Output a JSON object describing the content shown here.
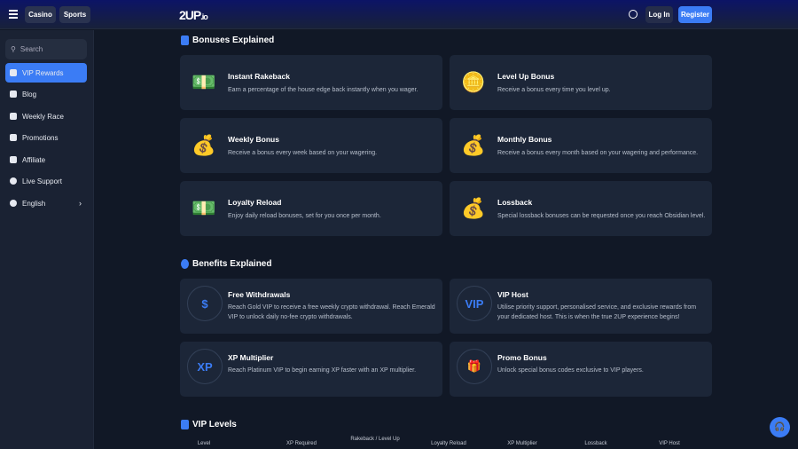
{
  "header": {
    "nav": [
      "Casino",
      "Sports"
    ],
    "logo": "2UP",
    "logo_suffix": ".io",
    "login": "Log In",
    "register": "Register"
  },
  "sidebar": {
    "search": "Search",
    "items": [
      {
        "label": "VIP Rewards",
        "icon": "gift-icon"
      },
      {
        "label": "Blog",
        "icon": "document-icon"
      },
      {
        "label": "Weekly Race",
        "icon": "flag-icon"
      },
      {
        "label": "Promotions",
        "icon": "ticket-icon"
      },
      {
        "label": "Affiliate",
        "icon": "user-plus-icon"
      },
      {
        "label": "Live Support",
        "icon": "support-icon"
      },
      {
        "label": "English",
        "icon": "globe-icon"
      }
    ]
  },
  "bonuses": {
    "title": "Bonuses Explained",
    "items": [
      {
        "title": "Instant Rakeback",
        "desc": "Earn a percentage of the house edge back instantly when you wager.",
        "icon": "💵"
      },
      {
        "title": "Level Up Bonus",
        "desc": "Receive a bonus every time you level up.",
        "icon": "🪙"
      },
      {
        "title": "Weekly Bonus",
        "desc": "Receive a bonus every week based on your wagering.",
        "icon": "💰"
      },
      {
        "title": "Monthly Bonus",
        "desc": "Receive a bonus every month based on your wagering and performance.",
        "icon": "💰"
      },
      {
        "title": "Loyalty Reload",
        "desc": "Enjoy daily reload bonuses, set for you once per month.",
        "icon": "💵"
      },
      {
        "title": "Lossback",
        "desc": "Special lossback bonuses can be requested once you reach Obsidian level.",
        "icon": "💰"
      }
    ]
  },
  "benefits": {
    "title": "Benefits Explained",
    "items": [
      {
        "title": "Free Withdrawals",
        "desc": "Reach Gold VIP to receive a free weekly crypto withdrawal. Reach Emerald VIP to unlock daily no-fee crypto withdrawals.",
        "icon": "$"
      },
      {
        "title": "VIP Host",
        "desc": "Utilise priority support, personalised service, and exclusive rewards from your dedicated host. This is when the true 2UP experience begins!",
        "icon": "VIP"
      },
      {
        "title": "XP Multiplier",
        "desc": "Reach Platinum VIP to begin earning XP faster with an XP multiplier.",
        "icon": "XP"
      },
      {
        "title": "Promo Bonus",
        "desc": "Unlock special bonus codes exclusive to VIP players.",
        "icon": "🎁"
      }
    ]
  },
  "levels": {
    "title": "VIP Levels",
    "columns": [
      "Level",
      "XP Required",
      "Rakeback / Level Up",
      "Loyalty Reload",
      "XP Multiplier",
      "Lossback",
      "VIP Host"
    ]
  },
  "colors": {
    "accent": "#3b7cf5",
    "card": "#1c2638",
    "background": "#111826"
  }
}
